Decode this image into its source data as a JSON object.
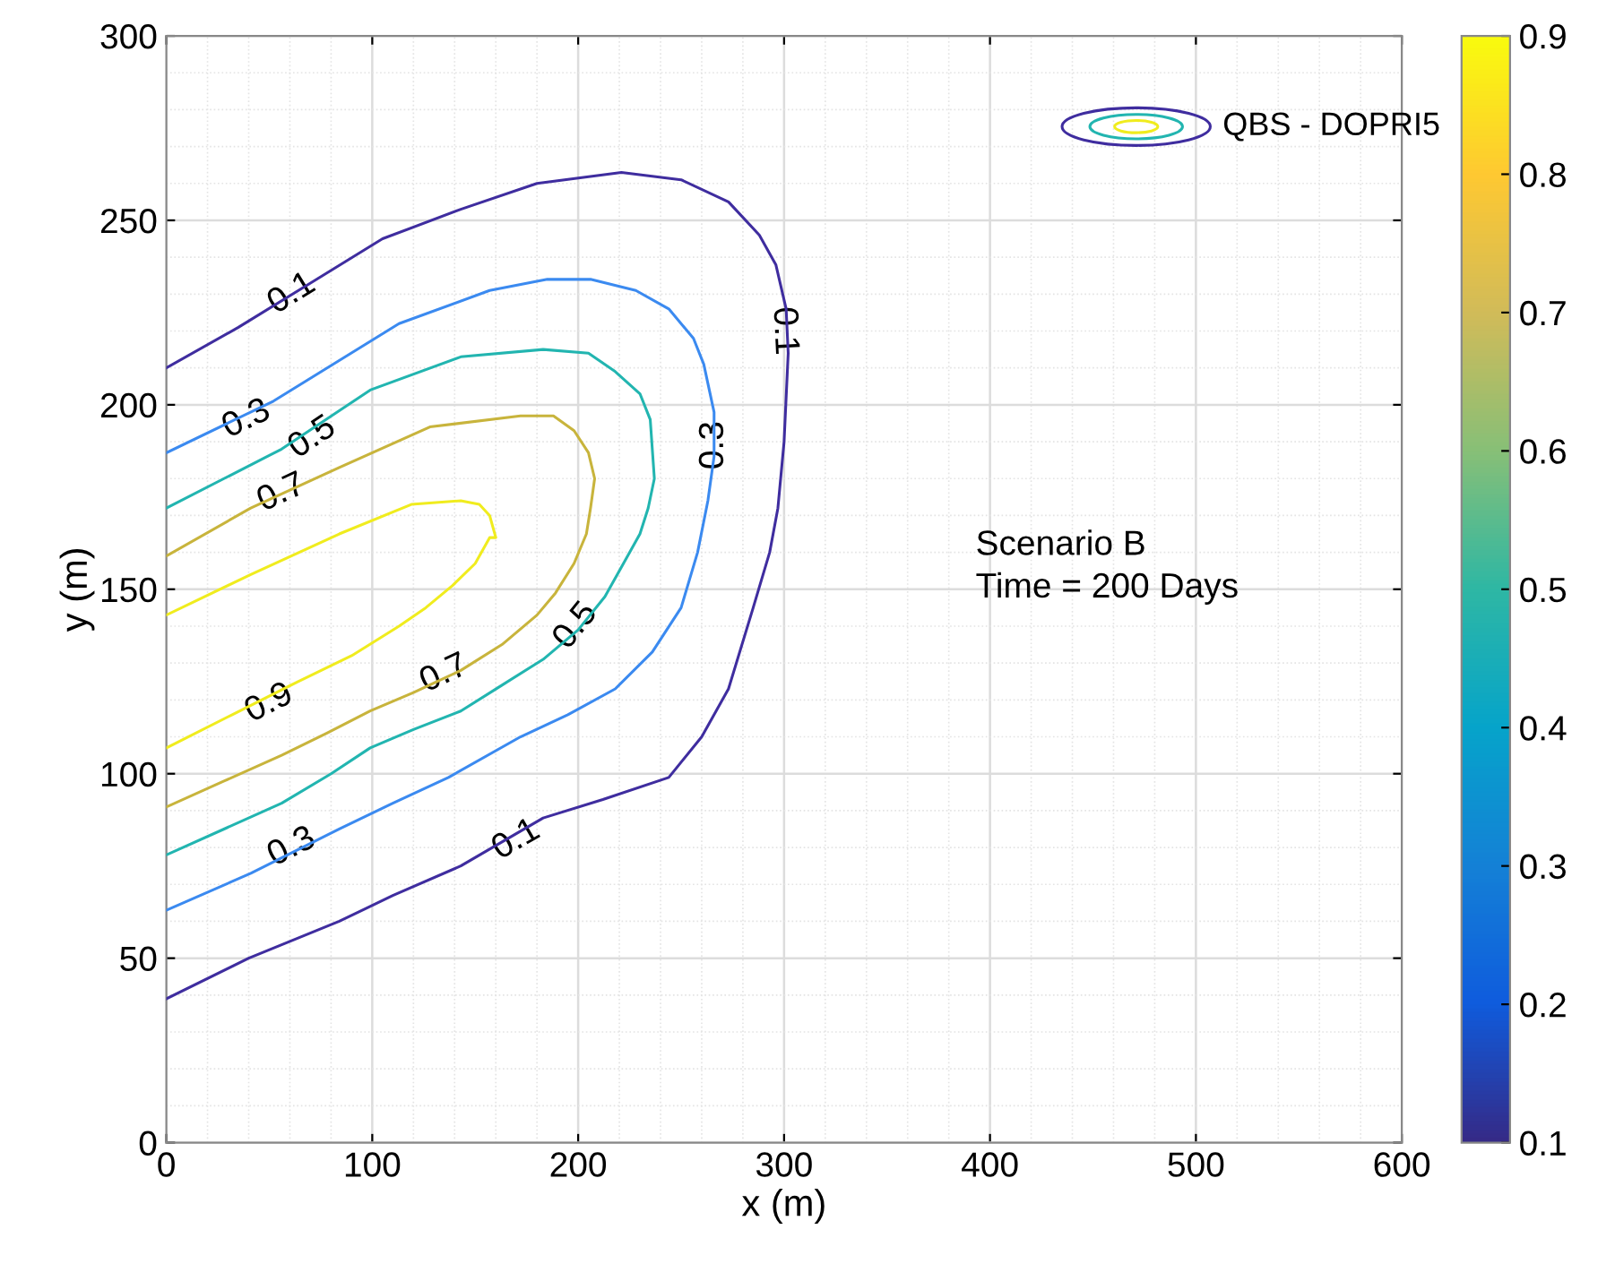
{
  "chart_data": {
    "type": "line",
    "xlabel": "x (m)",
    "ylabel": "y (m)",
    "xlim": [
      0,
      600
    ],
    "ylim": [
      0,
      300
    ],
    "xticks": [
      0,
      100,
      200,
      300,
      400,
      500,
      600
    ],
    "yticks": [
      0,
      50,
      100,
      150,
      200,
      250,
      300
    ],
    "grid": true,
    "legend": false,
    "marker": "none",
    "line_style": "solid",
    "clim": [
      0.1,
      0.9
    ],
    "cticks": [
      0.1,
      0.2,
      0.3,
      0.4,
      0.5,
      0.6,
      0.7,
      0.8,
      0.9
    ],
    "series": [
      {
        "color": "#3f2d9f",
        "x": [
          0,
          35,
          70,
          105,
          143,
          180,
          221,
          250,
          273,
          288,
          296,
          301,
          302,
          300,
          297,
          293,
          285,
          273,
          260,
          244,
          212,
          183,
          143,
          110,
          84,
          40,
          0
        ],
        "values": [
          210,
          221,
          233,
          245,
          253,
          260,
          263,
          261,
          255,
          246,
          238,
          226,
          214,
          190,
          172,
          160,
          145,
          123,
          110,
          99,
          93,
          88,
          75,
          67,
          60,
          50,
          39
        ]
      },
      {
        "color": "#3b8af0",
        "x": [
          0,
          52,
          113,
          157,
          185,
          206,
          228,
          244,
          256,
          261,
          266,
          266,
          263,
          258,
          250,
          236,
          218,
          195,
          172,
          137,
          110,
          84,
          41,
          0
        ],
        "values": [
          187,
          201,
          222,
          231,
          234,
          234,
          231,
          226,
          218,
          211,
          198,
          186,
          174,
          160,
          145,
          133,
          123,
          116,
          110,
          99,
          92,
          85,
          73,
          63
        ]
      },
      {
        "color": "#22b5b0",
        "x": [
          0,
          56,
          99,
          143,
          183,
          205,
          218,
          230,
          235,
          237,
          234,
          230,
          222,
          213,
          200,
          183,
          163,
          143,
          120,
          99,
          80,
          56,
          28,
          0
        ],
        "values": [
          172,
          188,
          204,
          213,
          215,
          214,
          209,
          203,
          196,
          180,
          172,
          165,
          157,
          148,
          139,
          131,
          124,
          117,
          112,
          107,
          100,
          92,
          85,
          78
        ]
      },
      {
        "color": "#c8b43c",
        "x": [
          0,
          41,
          84,
          128,
          172,
          188,
          198,
          205,
          208,
          206,
          204,
          198,
          189,
          180,
          163,
          143,
          120,
          99,
          78,
          56,
          28,
          0
        ],
        "values": [
          159,
          172,
          183,
          194,
          197,
          197,
          193,
          187,
          180,
          172,
          165,
          157,
          149,
          143,
          135,
          128,
          122,
          117,
          111,
          105,
          98,
          91
        ]
      },
      {
        "color": "#f0ec1e",
        "x": [
          0,
          41,
          84,
          119,
          143,
          152,
          157,
          160,
          157,
          150,
          139,
          126,
          113,
          90,
          64,
          32,
          0
        ],
        "values": [
          143,
          154,
          165,
          173,
          174,
          173,
          170,
          164,
          164,
          157,
          151,
          145,
          140,
          132,
          125,
          116,
          107
        ]
      }
    ],
    "annotations": [
      {
        "text": "0.1",
        "x": 61,
        "y": 230
      },
      {
        "text": "0.3",
        "x": 39,
        "y": 196
      },
      {
        "text": "0.5",
        "x": 71,
        "y": 191
      },
      {
        "text": "0.7",
        "x": 56,
        "y": 176
      },
      {
        "text": "0.9",
        "x": 50,
        "y": 119
      },
      {
        "text": "0.7",
        "x": 135,
        "y": 127
      },
      {
        "text": "0.5",
        "x": 199,
        "y": 140
      },
      {
        "text": "0.3",
        "x": 266,
        "y": 189
      },
      {
        "text": "0.1",
        "x": 300,
        "y": 220
      },
      {
        "text": "0.3",
        "x": 61,
        "y": 80
      },
      {
        "text": "0.1",
        "x": 170,
        "y": 82
      },
      "QBS - DOPRI5",
      "Scenario B\nTime = 200 Days"
    ]
  }
}
